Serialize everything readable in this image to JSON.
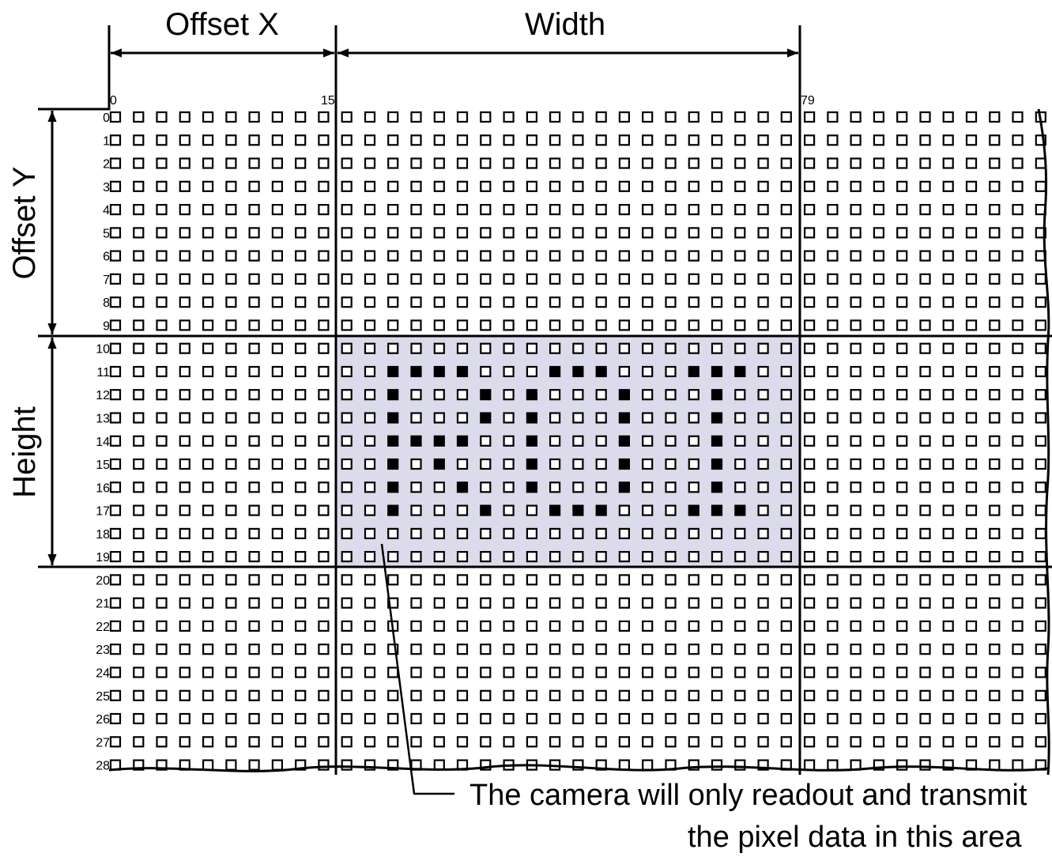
{
  "labels": {
    "offset_x": "Offset X",
    "width": "Width",
    "offset_y": "Offset Y",
    "height": "Height",
    "annotation_line1": "The camera will only readout and transmit",
    "annotation_line2": "the pixel data in this area"
  },
  "column_ticks": [
    "0",
    "15",
    "79"
  ],
  "row_labels": [
    "0",
    "1",
    "2",
    "3",
    "4",
    "5",
    "6",
    "7",
    "8",
    "9",
    "10",
    "11",
    "12",
    "13",
    "14",
    "15",
    "16",
    "17",
    "18",
    "19",
    "20",
    "21",
    "22",
    "23",
    "24",
    "25",
    "26",
    "27",
    "28"
  ],
  "grid": {
    "visible_columns": 41,
    "visible_rows": 29,
    "roi_columns_from": 10,
    "roi_columns_to": 29,
    "roi_rows_from": 10,
    "roi_rows_to": 19
  },
  "highlight_color": "#dcdbeb",
  "filled_pixels": [
    [
      11,
      12
    ],
    [
      11,
      13
    ],
    [
      11,
      14
    ],
    [
      11,
      15
    ],
    [
      11,
      19
    ],
    [
      11,
      20
    ],
    [
      11,
      21
    ],
    [
      11,
      25
    ],
    [
      11,
      26
    ],
    [
      11,
      27
    ],
    [
      12,
      12
    ],
    [
      12,
      16
    ],
    [
      12,
      18
    ],
    [
      12,
      22
    ],
    [
      12,
      26
    ],
    [
      13,
      12
    ],
    [
      13,
      16
    ],
    [
      13,
      18
    ],
    [
      13,
      22
    ],
    [
      13,
      26
    ],
    [
      14,
      12
    ],
    [
      14,
      13
    ],
    [
      14,
      14
    ],
    [
      14,
      15
    ],
    [
      14,
      18
    ],
    [
      14,
      22
    ],
    [
      14,
      26
    ],
    [
      15,
      12
    ],
    [
      15,
      14
    ],
    [
      15,
      18
    ],
    [
      15,
      22
    ],
    [
      15,
      26
    ],
    [
      16,
      12
    ],
    [
      16,
      15
    ],
    [
      16,
      18
    ],
    [
      16,
      22
    ],
    [
      16,
      26
    ],
    [
      17,
      12
    ],
    [
      17,
      16
    ],
    [
      17,
      19
    ],
    [
      17,
      20
    ],
    [
      17,
      21
    ],
    [
      17,
      25
    ],
    [
      17,
      26
    ],
    [
      17,
      27
    ]
  ]
}
